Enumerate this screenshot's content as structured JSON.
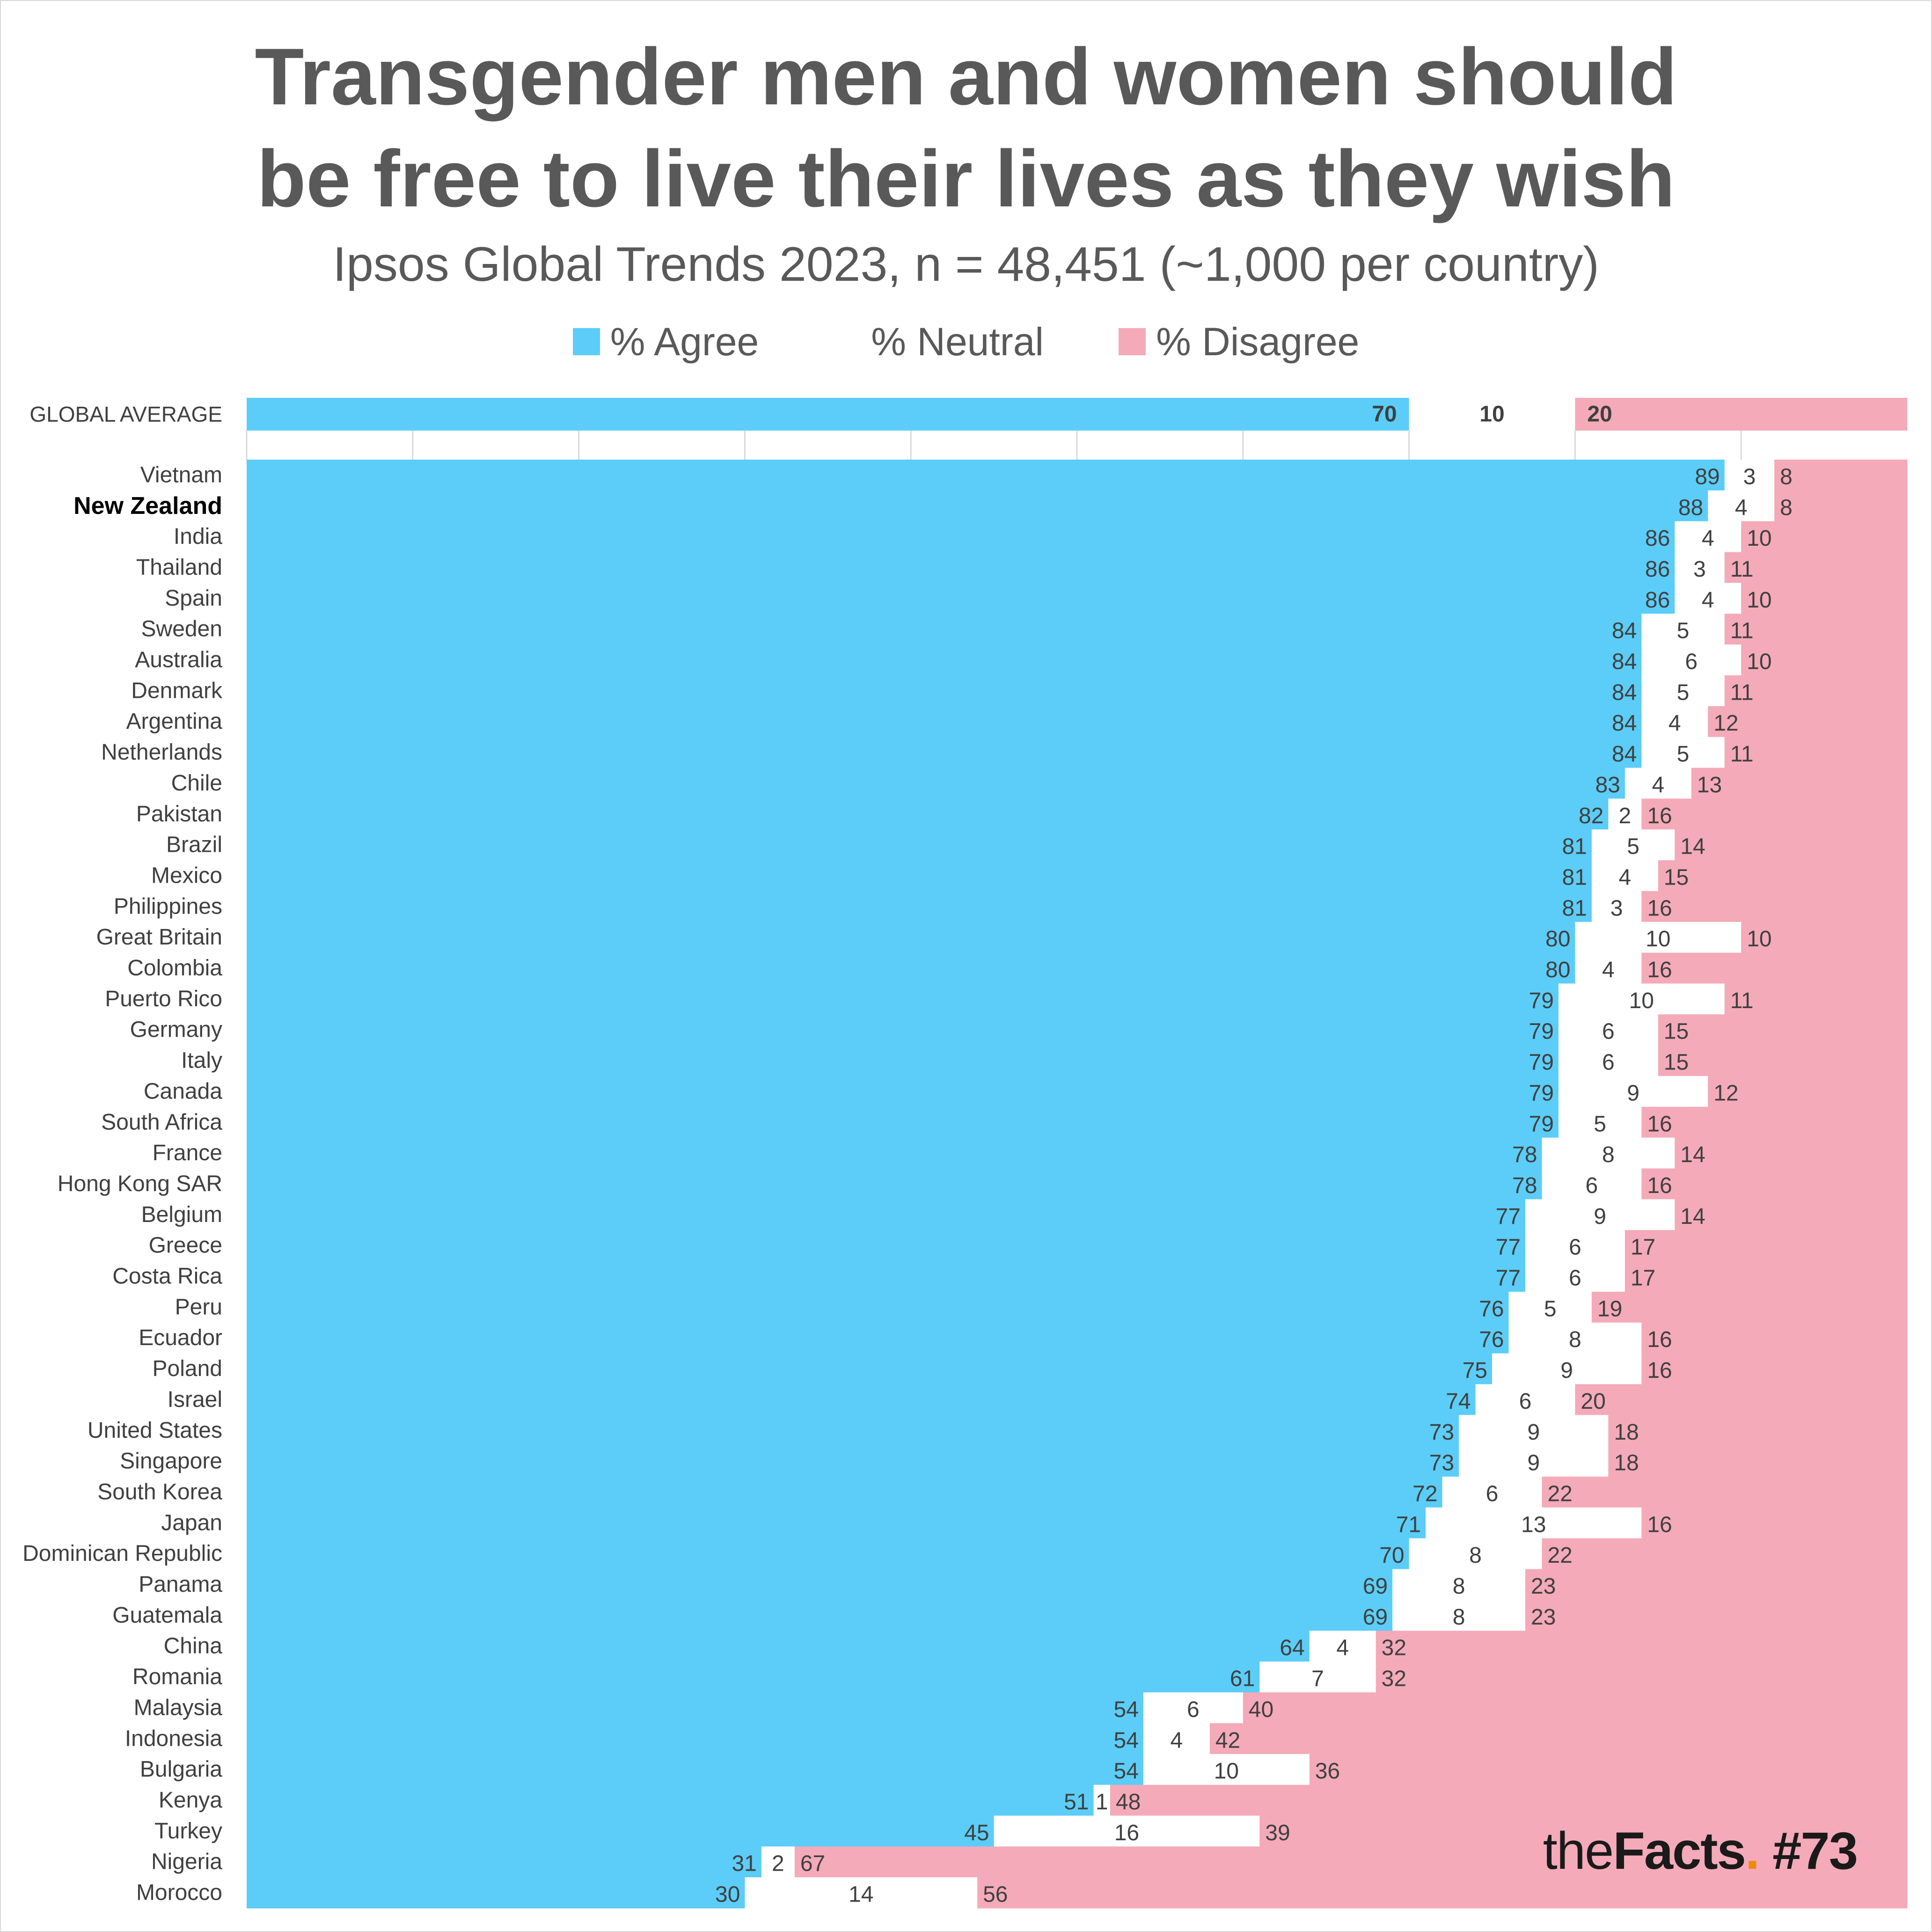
{
  "title_line1": "Transgender men and women should",
  "title_line2": "be free to live their lives as they wish",
  "subtitle": "Ipsos Global Trends 2023, n = 48,451 (~1,000 per country)",
  "legend": [
    {
      "label": "% Agree",
      "color": "#5bcdf8"
    },
    {
      "label": "% Neutral",
      "color": "#ffffff"
    },
    {
      "label": "% Disagree",
      "color": "#f4aab9"
    }
  ],
  "brand": {
    "prefix": "the",
    "bold": "Facts",
    "dot": ".",
    "tag": " #73"
  },
  "colors": {
    "agree": "#5bcdf8",
    "neutral": "#ffffff",
    "disagree": "#f4aab9",
    "grid": "#d9d9d9",
    "text": "#404040"
  },
  "chart_data": {
    "type": "bar",
    "stacked": true,
    "orientation": "horizontal",
    "title": "Transgender men and women should be free to live their lives as they wish",
    "series_names": [
      "% Agree",
      "% Neutral",
      "% Disagree"
    ],
    "average": {
      "label": "GLOBAL AVERAGE",
      "agree": 70,
      "neutral": 10,
      "disagree": 20
    },
    "highlight": "New Zealand",
    "xlim": [
      0,
      100
    ],
    "rows": [
      {
        "country": "Vietnam",
        "agree": 89,
        "neutral": 3,
        "disagree": 8
      },
      {
        "country": "New Zealand",
        "agree": 88,
        "neutral": 4,
        "disagree": 8
      },
      {
        "country": "India",
        "agree": 86,
        "neutral": 4,
        "disagree": 10
      },
      {
        "country": "Thailand",
        "agree": 86,
        "neutral": 3,
        "disagree": 11
      },
      {
        "country": "Spain",
        "agree": 86,
        "neutral": 4,
        "disagree": 10
      },
      {
        "country": "Sweden",
        "agree": 84,
        "neutral": 5,
        "disagree": 11
      },
      {
        "country": "Australia",
        "agree": 84,
        "neutral": 6,
        "disagree": 10
      },
      {
        "country": "Denmark",
        "agree": 84,
        "neutral": 5,
        "disagree": 11
      },
      {
        "country": "Argentina",
        "agree": 84,
        "neutral": 4,
        "disagree": 12
      },
      {
        "country": "Netherlands",
        "agree": 84,
        "neutral": 5,
        "disagree": 11
      },
      {
        "country": "Chile",
        "agree": 83,
        "neutral": 4,
        "disagree": 13
      },
      {
        "country": "Pakistan",
        "agree": 82,
        "neutral": 2,
        "disagree": 16
      },
      {
        "country": "Brazil",
        "agree": 81,
        "neutral": 5,
        "disagree": 14
      },
      {
        "country": "Mexico",
        "agree": 81,
        "neutral": 4,
        "disagree": 15
      },
      {
        "country": "Philippines",
        "agree": 81,
        "neutral": 3,
        "disagree": 16
      },
      {
        "country": "Great Britain",
        "agree": 80,
        "neutral": 10,
        "disagree": 10
      },
      {
        "country": "Colombia",
        "agree": 80,
        "neutral": 4,
        "disagree": 16
      },
      {
        "country": "Puerto Rico",
        "agree": 79,
        "neutral": 10,
        "disagree": 11
      },
      {
        "country": "Germany",
        "agree": 79,
        "neutral": 6,
        "disagree": 15
      },
      {
        "country": "Italy",
        "agree": 79,
        "neutral": 6,
        "disagree": 15
      },
      {
        "country": "Canada",
        "agree": 79,
        "neutral": 9,
        "disagree": 12
      },
      {
        "country": "South Africa",
        "agree": 79,
        "neutral": 5,
        "disagree": 16
      },
      {
        "country": "France",
        "agree": 78,
        "neutral": 8,
        "disagree": 14
      },
      {
        "country": "Hong Kong SAR",
        "agree": 78,
        "neutral": 6,
        "disagree": 16
      },
      {
        "country": "Belgium",
        "agree": 77,
        "neutral": 9,
        "disagree": 14
      },
      {
        "country": "Greece",
        "agree": 77,
        "neutral": 6,
        "disagree": 17
      },
      {
        "country": "Costa Rica",
        "agree": 77,
        "neutral": 6,
        "disagree": 17
      },
      {
        "country": "Peru",
        "agree": 76,
        "neutral": 5,
        "disagree": 19
      },
      {
        "country": "Ecuador",
        "agree": 76,
        "neutral": 8,
        "disagree": 16
      },
      {
        "country": "Poland",
        "agree": 75,
        "neutral": 9,
        "disagree": 16
      },
      {
        "country": "Israel",
        "agree": 74,
        "neutral": 6,
        "disagree": 20
      },
      {
        "country": "United States",
        "agree": 73,
        "neutral": 9,
        "disagree": 18
      },
      {
        "country": "Singapore",
        "agree": 73,
        "neutral": 9,
        "disagree": 18
      },
      {
        "country": "South Korea",
        "agree": 72,
        "neutral": 6,
        "disagree": 22
      },
      {
        "country": "Japan",
        "agree": 71,
        "neutral": 13,
        "disagree": 16
      },
      {
        "country": "Dominican Republic",
        "agree": 70,
        "neutral": 8,
        "disagree": 22
      },
      {
        "country": "Panama",
        "agree": 69,
        "neutral": 8,
        "disagree": 23
      },
      {
        "country": "Guatemala",
        "agree": 69,
        "neutral": 8,
        "disagree": 23
      },
      {
        "country": "China",
        "agree": 64,
        "neutral": 4,
        "disagree": 32
      },
      {
        "country": "Romania",
        "agree": 61,
        "neutral": 7,
        "disagree": 32
      },
      {
        "country": "Malaysia",
        "agree": 54,
        "neutral": 6,
        "disagree": 40
      },
      {
        "country": "Indonesia",
        "agree": 54,
        "neutral": 4,
        "disagree": 42
      },
      {
        "country": "Bulgaria",
        "agree": 54,
        "neutral": 10,
        "disagree": 36
      },
      {
        "country": "Kenya",
        "agree": 51,
        "neutral": 1,
        "disagree": 48
      },
      {
        "country": "Turkey",
        "agree": 45,
        "neutral": 16,
        "disagree": 39
      },
      {
        "country": "Nigeria",
        "agree": 31,
        "neutral": 2,
        "disagree": 67
      },
      {
        "country": "Morocco",
        "agree": 30,
        "neutral": 14,
        "disagree": 56
      }
    ]
  }
}
